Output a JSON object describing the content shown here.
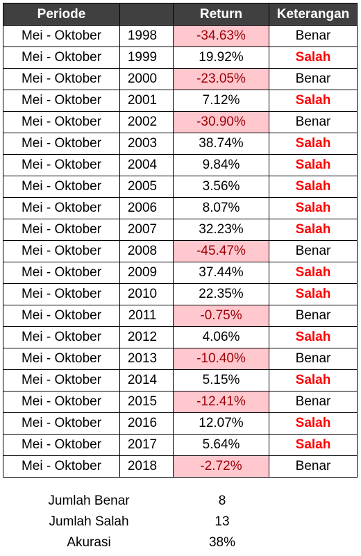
{
  "header": {
    "periode": "Periode",
    "return": "Return",
    "keterangan": "Keterangan"
  },
  "colors": {
    "header_bg": "#404040",
    "negative_fill": "#ffc7ce",
    "negative_text": "#9c0006",
    "salah_text": "#ff0000"
  },
  "rows": [
    {
      "periode": "Mei - Oktober",
      "year": "1998",
      "return": "-34.63%",
      "negative": true,
      "keterangan": "Benar"
    },
    {
      "periode": "Mei - Oktober",
      "year": "1999",
      "return": "19.92%",
      "negative": false,
      "keterangan": "Salah"
    },
    {
      "periode": "Mei - Oktober",
      "year": "2000",
      "return": "-23.05%",
      "negative": true,
      "keterangan": "Benar"
    },
    {
      "periode": "Mei - Oktober",
      "year": "2001",
      "return": "7.12%",
      "negative": false,
      "keterangan": "Salah"
    },
    {
      "periode": "Mei - Oktober",
      "year": "2002",
      "return": "-30.90%",
      "negative": true,
      "keterangan": "Benar"
    },
    {
      "periode": "Mei - Oktober",
      "year": "2003",
      "return": "38.74%",
      "negative": false,
      "keterangan": "Salah"
    },
    {
      "periode": "Mei - Oktober",
      "year": "2004",
      "return": "9.84%",
      "negative": false,
      "keterangan": "Salah"
    },
    {
      "periode": "Mei - Oktober",
      "year": "2005",
      "return": "3.56%",
      "negative": false,
      "keterangan": "Salah"
    },
    {
      "periode": "Mei - Oktober",
      "year": "2006",
      "return": "8.07%",
      "negative": false,
      "keterangan": "Salah"
    },
    {
      "periode": "Mei - Oktober",
      "year": "2007",
      "return": "32.23%",
      "negative": false,
      "keterangan": "Salah"
    },
    {
      "periode": "Mei - Oktober",
      "year": "2008",
      "return": "-45.47%",
      "negative": true,
      "keterangan": "Benar"
    },
    {
      "periode": "Mei - Oktober",
      "year": "2009",
      "return": "37.44%",
      "negative": false,
      "keterangan": "Salah"
    },
    {
      "periode": "Mei - Oktober",
      "year": "2010",
      "return": "22.35%",
      "negative": false,
      "keterangan": "Salah"
    },
    {
      "periode": "Mei - Oktober",
      "year": "2011",
      "return": "-0.75%",
      "negative": true,
      "keterangan": "Benar"
    },
    {
      "periode": "Mei - Oktober",
      "year": "2012",
      "return": "4.06%",
      "negative": false,
      "keterangan": "Salah"
    },
    {
      "periode": "Mei - Oktober",
      "year": "2013",
      "return": "-10.40%",
      "negative": true,
      "keterangan": "Benar"
    },
    {
      "periode": "Mei - Oktober",
      "year": "2014",
      "return": "5.15%",
      "negative": false,
      "keterangan": "Salah"
    },
    {
      "periode": "Mei - Oktober",
      "year": "2015",
      "return": "-12.41%",
      "negative": true,
      "keterangan": "Benar"
    },
    {
      "periode": "Mei - Oktober",
      "year": "2016",
      "return": "12.07%",
      "negative": false,
      "keterangan": "Salah"
    },
    {
      "periode": "Mei - Oktober",
      "year": "2017",
      "return": "5.64%",
      "negative": false,
      "keterangan": "Salah"
    },
    {
      "periode": "Mei - Oktober",
      "year": "2018",
      "return": "-2.72%",
      "negative": true,
      "keterangan": "Benar"
    }
  ],
  "summary": [
    {
      "label": "Jumlah Benar",
      "value": "8"
    },
    {
      "label": "Jumlah Salah",
      "value": "13"
    },
    {
      "label": "Akurasi",
      "value": "38%"
    }
  ]
}
